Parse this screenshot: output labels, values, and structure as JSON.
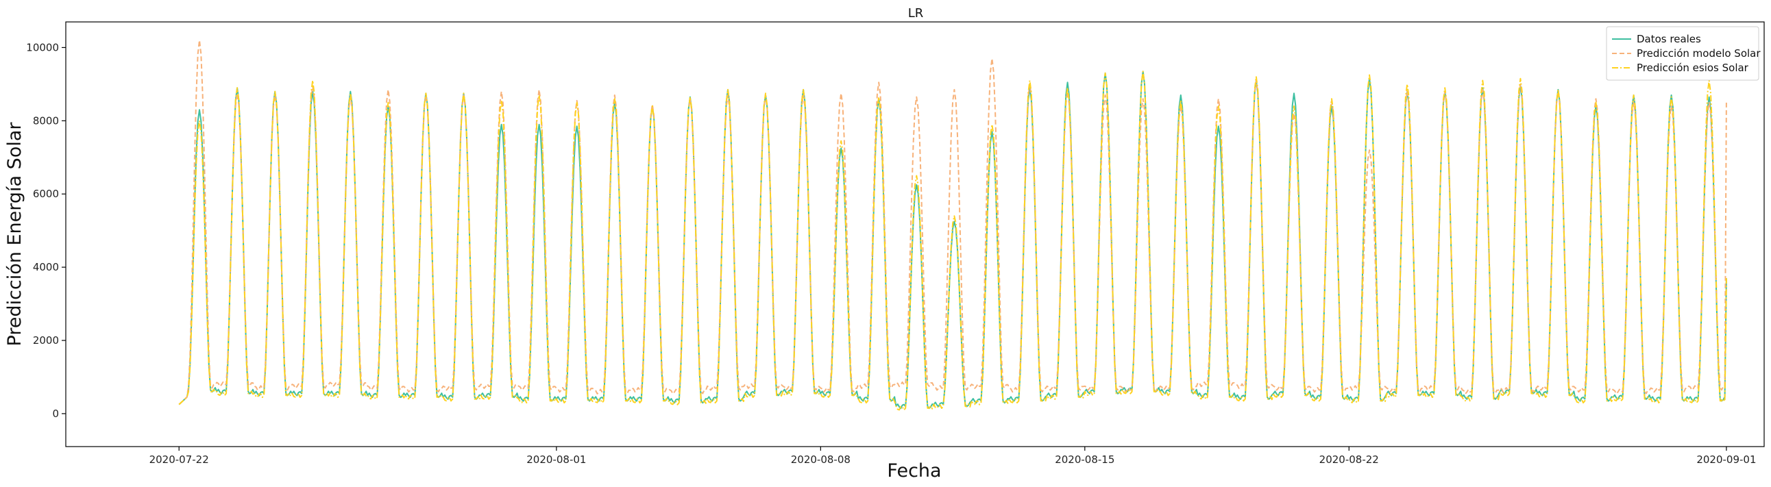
{
  "chart_data": {
    "type": "line",
    "title": "LR",
    "xlabel": "Fecha",
    "ylabel": "Predicción Energía Solar",
    "x_ticks": [
      "2020-07-22",
      "2020-08-01",
      "2020-08-08",
      "2020-08-15",
      "2020-08-22",
      "2020-09-01"
    ],
    "y_ticks": [
      0,
      2000,
      4000,
      6000,
      8000,
      10000
    ],
    "xlim": [
      "2020-07-19",
      "2020-09-02"
    ],
    "ylim": [
      -900,
      10700
    ],
    "legend_position": "top-right",
    "grid": false,
    "start_date": "2020-07-22",
    "sampling": "hourly",
    "series": [
      {
        "name": "Datos reales",
        "color": "#3dbfa0",
        "style": "solid",
        "daily_peaks": [
          8300,
          8900,
          8800,
          8800,
          8800,
          8400,
          8750,
          8750,
          7900,
          7900,
          7850,
          8500,
          8400,
          8650,
          8850,
          8700,
          8850,
          7250,
          8600,
          6250,
          5250,
          7700,
          8900,
          9050,
          9300,
          9350,
          8700,
          7850,
          9100,
          8750,
          8400,
          9150,
          8800,
          8800,
          8900,
          8950,
          8850,
          8400,
          8700,
          8700,
          8650
        ],
        "night_levels": [
          650,
          600,
          550,
          550,
          550,
          500,
          500,
          450,
          500,
          400,
          400,
          400,
          400,
          350,
          400,
          550,
          600,
          550,
          400,
          200,
          250,
          350,
          400,
          500,
          600,
          650,
          600,
          500,
          450,
          550,
          450,
          400,
          550,
          550,
          450,
          600,
          550,
          400,
          450,
          400,
          400
        ],
        "end_value": 3700
      },
      {
        "name": "Predicción modelo Solar",
        "color": "#f7b27a",
        "style": "dashed",
        "daily_peaks": [
          10200,
          8750,
          8700,
          8950,
          8650,
          8850,
          8700,
          8700,
          8800,
          8850,
          8550,
          8700,
          8450,
          8600,
          8700,
          8700,
          8700,
          8750,
          9050,
          8650,
          8850,
          9700,
          9000,
          8800,
          8700,
          8600,
          8400,
          8600,
          9100,
          8200,
          8550,
          7200,
          8800,
          8800,
          8850,
          9000,
          8800,
          8600,
          8500,
          8400,
          8500
        ],
        "night_levels": [
          750,
          800,
          700,
          750,
          800,
          700,
          650,
          700,
          750,
          700,
          650,
          600,
          650,
          600,
          700,
          750,
          700,
          650,
          750,
          800,
          700,
          750,
          650,
          700,
          700,
          650,
          700,
          800,
          750,
          700,
          650,
          700,
          650,
          700,
          600,
          650,
          700,
          650,
          600,
          650,
          700
        ],
        "end_value": 8500
      },
      {
        "name": "Predicción esios Solar",
        "color": "#ffd21f",
        "style": "dashdot",
        "daily_peaks": [
          8000,
          8900,
          8800,
          9100,
          8750,
          8500,
          8750,
          8750,
          8550,
          8700,
          8500,
          8600,
          8400,
          8650,
          8850,
          8750,
          8850,
          7450,
          8650,
          6500,
          5400,
          7900,
          9100,
          8900,
          9300,
          9350,
          8550,
          8400,
          9200,
          8400,
          8600,
          9250,
          9000,
          8900,
          9100,
          9150,
          8850,
          8500,
          8700,
          8650,
          9100
        ],
        "night_levels": [
          600,
          550,
          500,
          500,
          500,
          450,
          450,
          400,
          450,
          350,
          350,
          350,
          350,
          300,
          350,
          500,
          550,
          500,
          350,
          150,
          200,
          300,
          350,
          450,
          550,
          600,
          550,
          450,
          400,
          500,
          400,
          350,
          500,
          500,
          400,
          550,
          500,
          350,
          400,
          350,
          350
        ],
        "end_value": 3700
      }
    ]
  }
}
